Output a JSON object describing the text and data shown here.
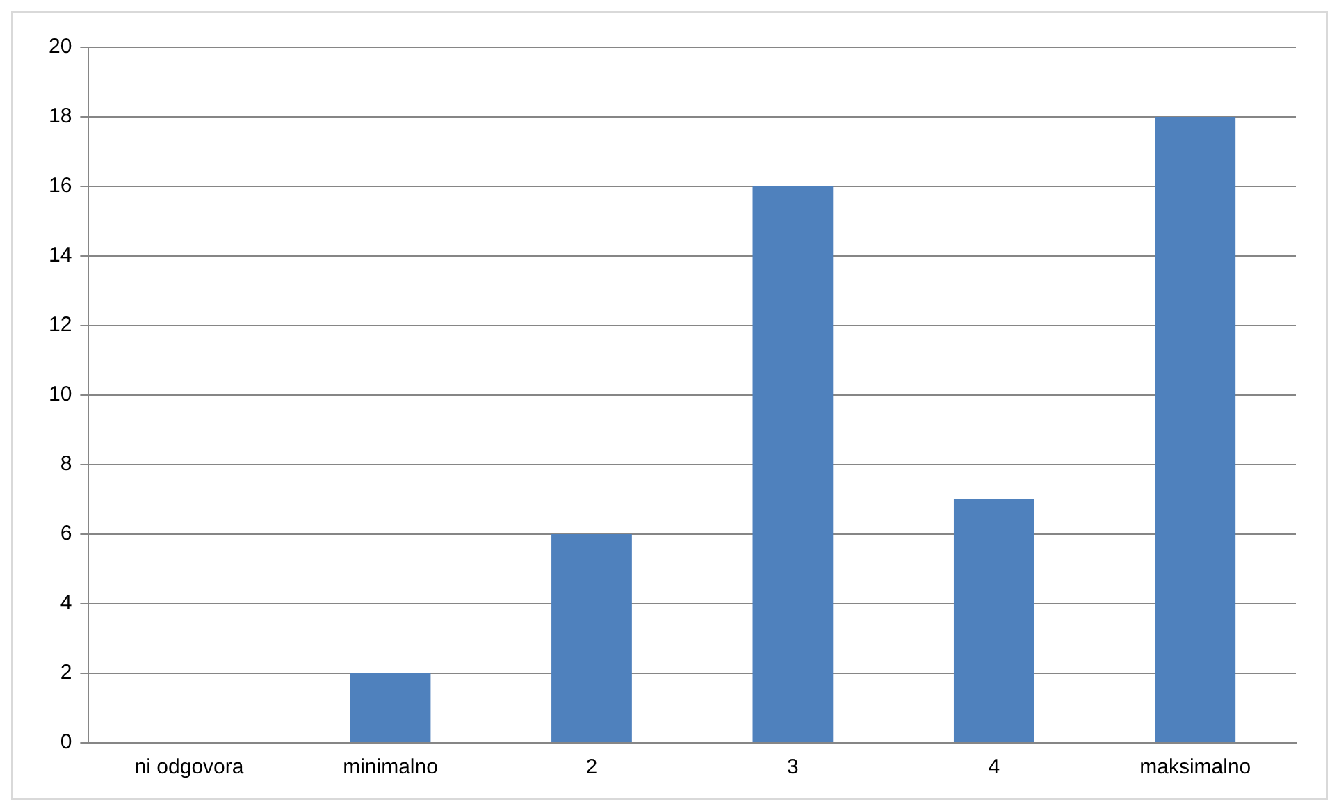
{
  "chart_data": {
    "type": "bar",
    "categories": [
      "ni odgovora",
      "minimalno",
      "2",
      "3",
      "4",
      "maksimalno"
    ],
    "values": [
      0,
      2,
      6,
      16,
      7,
      18
    ],
    "color": "#4f81bd",
    "ylim": [
      0,
      20
    ],
    "yticks": [
      0,
      2,
      4,
      6,
      8,
      10,
      12,
      14,
      16,
      18,
      20
    ],
    "grid": "y",
    "legend": false
  }
}
